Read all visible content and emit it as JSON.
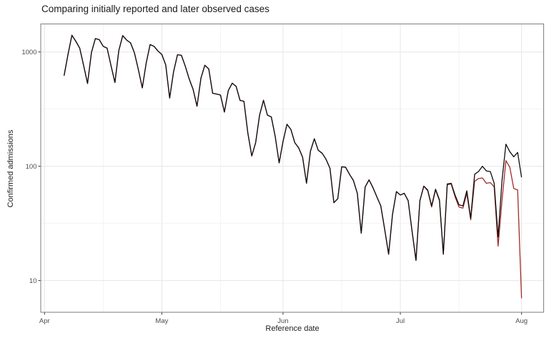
{
  "title": "Comparing initially reported and later observed cases",
  "chart_data": {
    "type": "line",
    "title": "Comparing initially reported and later observed cases",
    "xlabel": "Reference date",
    "ylabel": "Confirmed admissions",
    "y_scale": "log10",
    "grid": true,
    "legend": "none",
    "panel_border_color": "#878787",
    "grid_major_color": "#e6e6e6",
    "grid_minor_color": "#f1f1f1",
    "tick_color": "#333333",
    "tick_label_color": "#4d4d4d",
    "ylim": [
      5.28,
      1758
    ],
    "xlim_days_from_apr1": [
      -0.97,
      127.65
    ],
    "y_major_ticks": [
      {
        "label": "10",
        "value": 10
      },
      {
        "label": "100",
        "value": 100
      },
      {
        "label": "1000",
        "value": 1000
      }
    ],
    "y_minor_values": [
      31.62,
      316.2
    ],
    "x_major_ticks": [
      {
        "label": "Apr",
        "day": 0
      },
      {
        "label": "May",
        "day": 30
      },
      {
        "label": "Jun",
        "day": 61
      },
      {
        "label": "Jul",
        "day": 91
      },
      {
        "label": "Aug",
        "day": 122
      }
    ],
    "x_minor_days": [
      15,
      45,
      76,
      106
    ],
    "series_start_day": 5,
    "series_start_date_label": "Apr 6",
    "series": [
      {
        "name": "initially reported",
        "color": "#a02c28",
        "values": [
          620,
          950,
          1400,
          1240,
          1080,
          760,
          530,
          990,
          1310,
          1280,
          1120,
          1080,
          760,
          540,
          1030,
          1390,
          1270,
          1200,
          980,
          700,
          485,
          800,
          1160,
          1120,
          1020,
          950,
          770,
          395,
          670,
          945,
          935,
          750,
          580,
          470,
          335,
          590,
          765,
          710,
          435,
          428,
          420,
          298,
          460,
          533,
          500,
          377,
          370,
          195,
          123,
          161,
          280,
          378,
          280,
          270,
          182,
          107,
          165,
          233,
          210,
          161,
          145,
          120,
          71,
          135,
          174,
          138,
          130,
          115,
          96,
          48,
          52,
          99,
          98,
          85,
          75,
          58,
          26,
          66,
          76,
          65,
          54,
          45,
          28,
          17,
          38,
          60,
          56,
          58,
          50,
          27,
          15,
          50,
          67,
          61,
          44,
          62,
          50,
          17,
          69,
          70,
          54,
          44,
          43,
          58,
          34,
          74,
          78,
          79,
          71,
          72,
          66,
          20,
          50,
          112,
          98,
          64,
          62,
          7
        ]
      },
      {
        "name": "later observed",
        "color": "#0d0d0d",
        "values": [
          620,
          950,
          1400,
          1240,
          1080,
          760,
          530,
          990,
          1310,
          1280,
          1120,
          1080,
          760,
          540,
          1030,
          1390,
          1270,
          1200,
          980,
          700,
          485,
          800,
          1160,
          1120,
          1020,
          950,
          770,
          395,
          670,
          945,
          935,
          750,
          580,
          470,
          335,
          590,
          765,
          710,
          435,
          428,
          420,
          298,
          460,
          533,
          500,
          377,
          370,
          195,
          123,
          161,
          280,
          378,
          280,
          270,
          182,
          107,
          165,
          233,
          210,
          161,
          145,
          120,
          71,
          135,
          174,
          138,
          130,
          115,
          96,
          48,
          52,
          99,
          98,
          85,
          75,
          58,
          26,
          66,
          76,
          65,
          54,
          45,
          28,
          17,
          38,
          60,
          56,
          58,
          50,
          27,
          15,
          50,
          67,
          62,
          45,
          63,
          51,
          17,
          70,
          71,
          56,
          46,
          45,
          61,
          35,
          85,
          90,
          100,
          91,
          90,
          71,
          24,
          75,
          156,
          134,
          121,
          132,
          80
        ]
      }
    ]
  }
}
